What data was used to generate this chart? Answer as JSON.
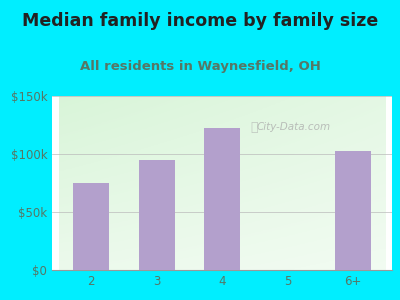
{
  "title": "Median family income by family size",
  "subtitle": "All residents in Waynesfield, OH",
  "categories": [
    "2",
    "3",
    "4",
    "5",
    "6+"
  ],
  "values": [
    75000,
    95000,
    122000,
    0,
    103000
  ],
  "bar_color": "#b3a0cc",
  "ylim": [
    0,
    150000
  ],
  "yticks": [
    0,
    50000,
    100000,
    150000
  ],
  "ytick_labels": [
    "$0",
    "$50k",
    "$100k",
    "$150k"
  ],
  "background_outer": "#00eeff",
  "title_color": "#222222",
  "subtitle_color": "#557766",
  "tick_color": "#557766",
  "watermark": "City-Data.com",
  "title_fontsize": 12.5,
  "subtitle_fontsize": 9.5,
  "gradient_colors": [
    "#c8e6c9",
    "#dcedc8",
    "#e8f5e9",
    "#f1f8e9",
    "#f9fbe7",
    "#ffffff"
  ],
  "gradient_right_tint": "#e8f0e8"
}
